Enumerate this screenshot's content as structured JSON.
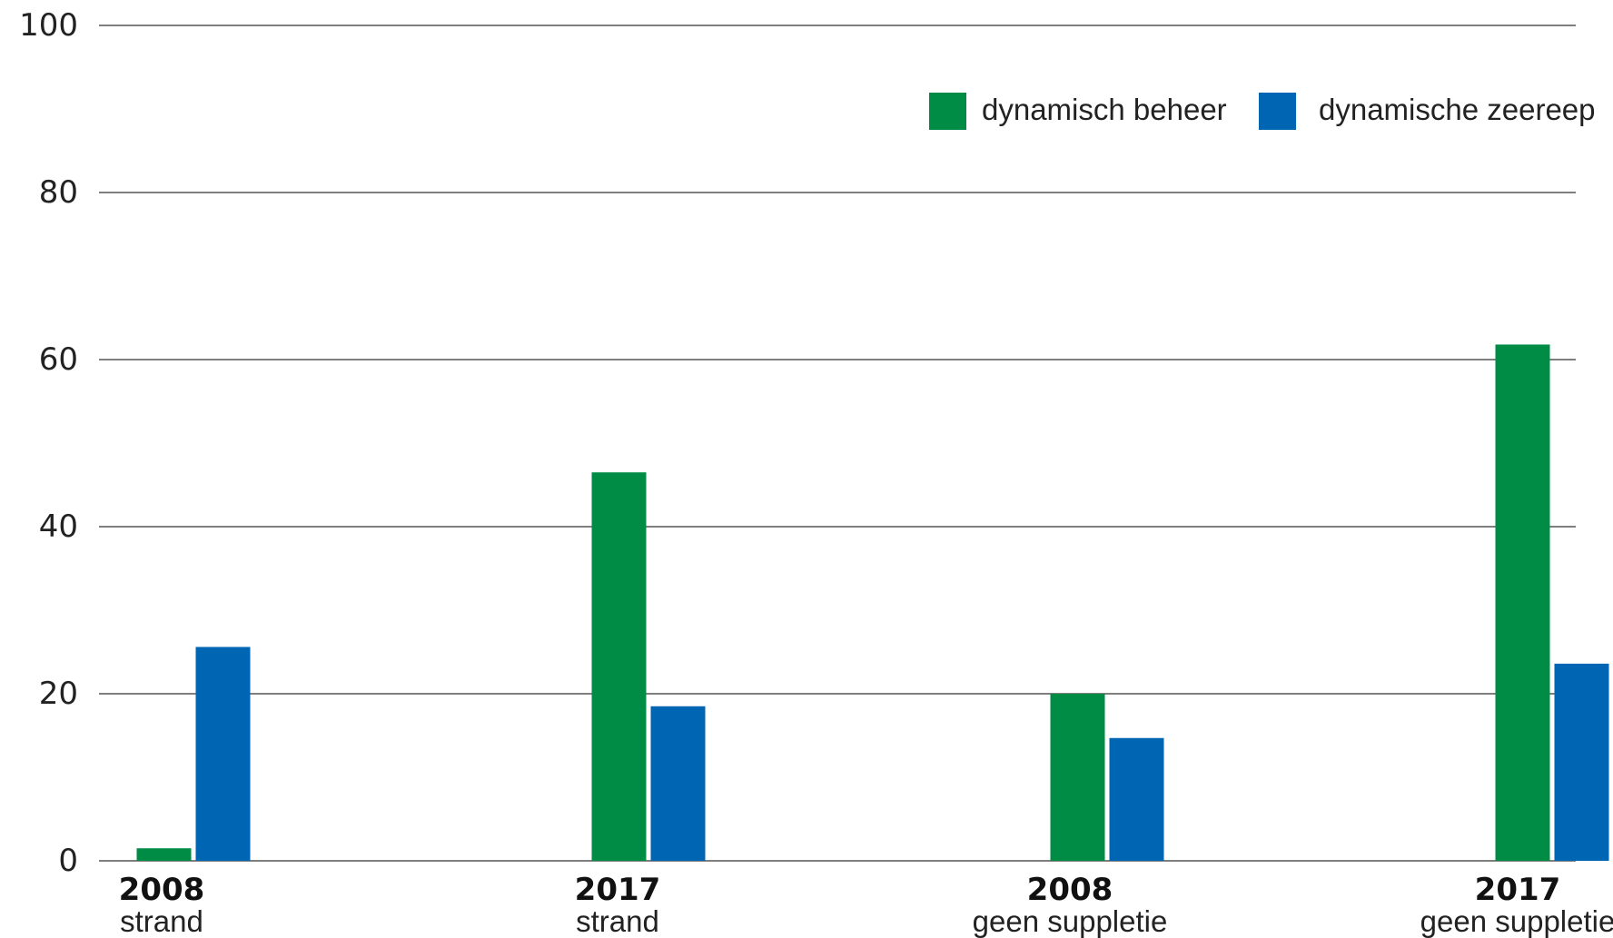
{
  "chart_data": {
    "type": "bar",
    "ylim": [
      0,
      100
    ],
    "yticks": [
      0,
      20,
      40,
      60,
      80,
      100
    ],
    "grid": true,
    "legend_position": "top-right",
    "categories": [
      {
        "year": "2008",
        "label": "strand"
      },
      {
        "year": "2017",
        "label": "strand"
      },
      {
        "year": "2008",
        "label": "geen suppletie"
      },
      {
        "year": "2017",
        "label": "geen suppletie"
      }
    ],
    "series": [
      {
        "name": "dynamisch beheer",
        "color": "#008C45",
        "values": [
          1.5,
          46.5,
          20,
          61.8
        ]
      },
      {
        "name": "dynamische zeereep",
        "color": "#0066B3",
        "values": [
          25.6,
          18.5,
          14.7,
          23.6
        ]
      }
    ]
  }
}
